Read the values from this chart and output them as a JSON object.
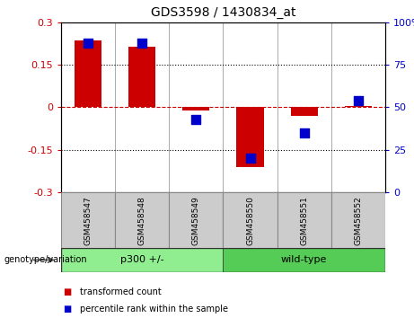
{
  "title": "GDS3598 / 1430834_at",
  "samples": [
    "GSM458547",
    "GSM458548",
    "GSM458549",
    "GSM458550",
    "GSM458551",
    "GSM458552"
  ],
  "bar_values": [
    0.235,
    0.215,
    -0.01,
    -0.21,
    -0.03,
    0.005
  ],
  "scatter_values": [
    88,
    88,
    43,
    20,
    35,
    54
  ],
  "bar_color": "#cc0000",
  "scatter_color": "#0000cc",
  "ylim_left": [
    -0.3,
    0.3
  ],
  "ylim_right": [
    0,
    100
  ],
  "yticks_left": [
    -0.3,
    -0.15,
    0,
    0.15,
    0.3
  ],
  "yticks_right": [
    0,
    25,
    50,
    75,
    100
  ],
  "hline_color": "#cc0000",
  "dotted_lines": [
    -0.15,
    0.15
  ],
  "groups": [
    {
      "label": "p300 +/-",
      "indices": [
        0,
        1,
        2
      ],
      "color": "#90ee90"
    },
    {
      "label": "wild-type",
      "indices": [
        3,
        4,
        5
      ],
      "color": "#55cc55"
    }
  ],
  "group_label": "genotype/variation",
  "legend_items": [
    {
      "label": "transformed count",
      "color": "#cc0000"
    },
    {
      "label": "percentile rank within the sample",
      "color": "#0000cc"
    }
  ],
  "bar_width": 0.5,
  "background_color": "#ffffff",
  "plot_bg_color": "#ffffff",
  "tick_box_color": "#cccccc",
  "scatter_size": 45
}
